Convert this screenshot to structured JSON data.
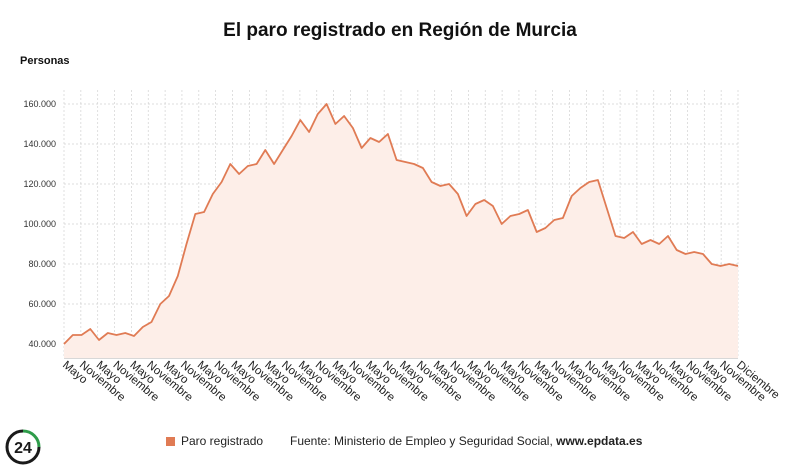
{
  "chart_data": {
    "type": "area",
    "title": "El paro registrado en Región de Murcia",
    "ylabel": "Personas",
    "ylim": [
      33000,
      167000
    ],
    "yticks": [
      "40.000",
      "60.000",
      "80.000",
      "100.000",
      "120.000",
      "140.000",
      "160.000"
    ],
    "yticks_values": [
      40000,
      60000,
      80000,
      100000,
      120000,
      140000,
      160000
    ],
    "xticks": [
      "Mayo",
      "Noviembre",
      "Mayo",
      "Noviembre",
      "Mayo",
      "Noviembre",
      "Mayo",
      "Noviembre",
      "Mayo",
      "Noviembre",
      "Mayo",
      "Noviembre",
      "Mayo",
      "Noviembre",
      "Mayo",
      "Noviembre",
      "Mayo",
      "Noviembre",
      "Mayo",
      "Noviembre",
      "Mayo",
      "Noviembre",
      "Mayo",
      "Noviembre",
      "Mayo",
      "Noviembre",
      "Mayo",
      "Noviembre",
      "Mayo",
      "Noviembre",
      "Mayo",
      "Noviembre",
      "Mayo",
      "Noviembre",
      "Mayo",
      "Noviembre",
      "Mayo",
      "Noviembre",
      "Mayo",
      "Noviembre",
      "Diciembre"
    ],
    "grid": true,
    "legend_position": "bottom-left",
    "line_color": "#e07b54",
    "fill_color": "#fdeee8",
    "series": [
      {
        "name": "Paro registrado",
        "values": [
          40000,
          44500,
          44500,
          47500,
          42000,
          45500,
          44500,
          45500,
          44000,
          48500,
          51000,
          60000,
          64000,
          74000,
          90000,
          105000,
          106000,
          115000,
          121000,
          130000,
          125000,
          129000,
          130000,
          137000,
          130000,
          137000,
          144000,
          152000,
          146000,
          155000,
          160000,
          150000,
          154000,
          148000,
          138000,
          143000,
          141000,
          145000,
          132000,
          131000,
          130000,
          128000,
          121000,
          119000,
          120000,
          115000,
          104000,
          110000,
          112000,
          109000,
          100000,
          104000,
          105000,
          107000,
          96000,
          98000,
          102000,
          103000,
          114000,
          118000,
          121000,
          122000,
          108000,
          94000,
          93000,
          96000,
          90000,
          92000,
          90000,
          94000,
          87000,
          85000,
          86000,
          85000,
          80000,
          79000,
          80000,
          79000
        ]
      }
    ]
  },
  "footer": {
    "legend_label": "Paro registrado",
    "source_prefix": "Fuente: Ministerio de Empleo y Seguridad Social, ",
    "source_site": "www.epdata.es"
  },
  "logo": {
    "text": "24",
    "colors": [
      "#1a1a1a",
      "#2e9c4a"
    ]
  }
}
